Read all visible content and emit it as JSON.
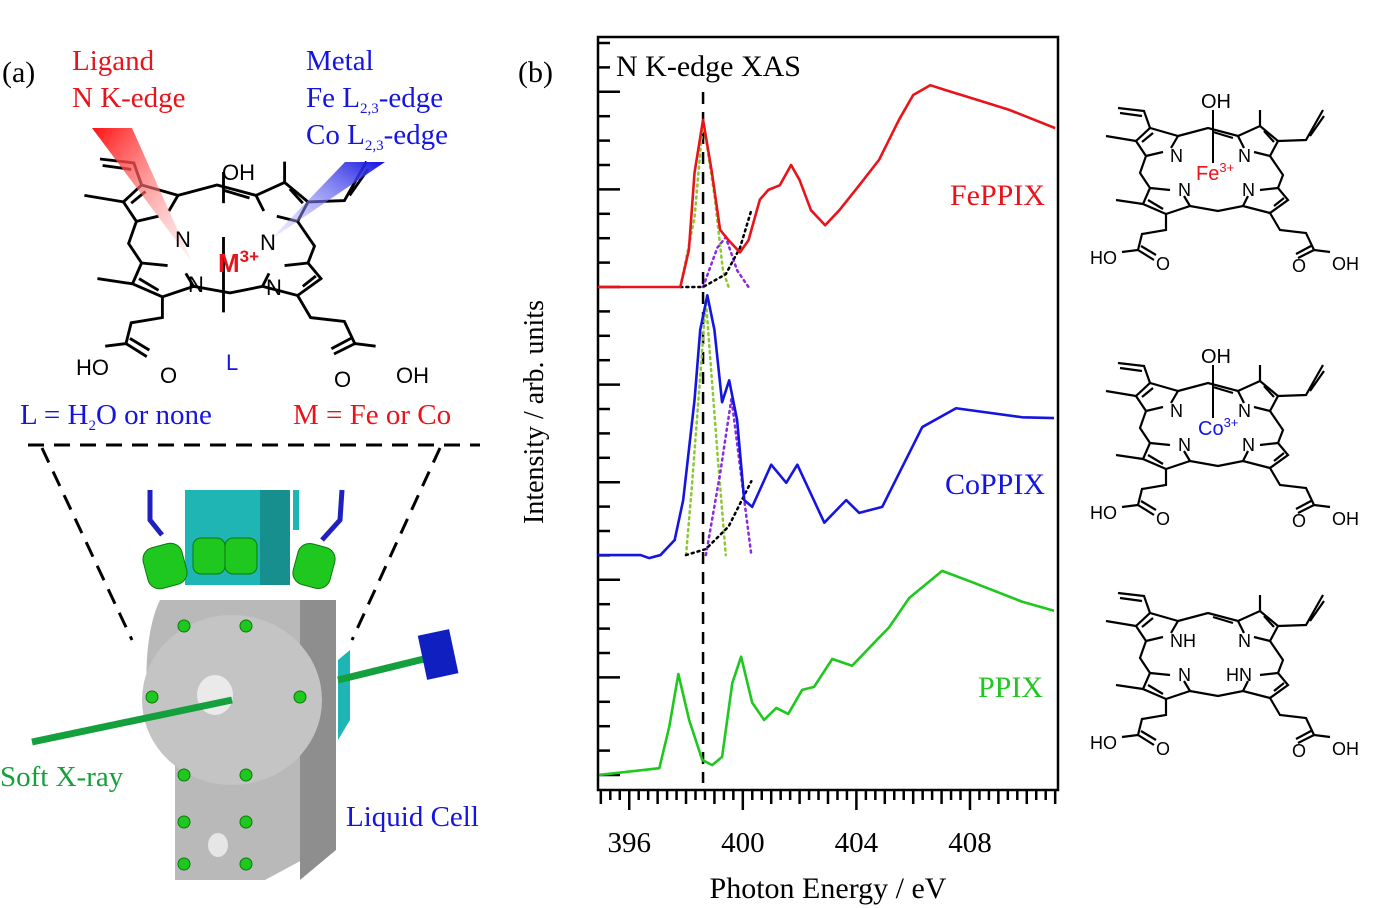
{
  "panel_a": {
    "label": "(a)",
    "ligand_probe": {
      "line1": "Ligand",
      "line2": "N K-edge",
      "color": "#e8141b"
    },
    "metal_probe": {
      "line1": "Metal",
      "line2_base": "Fe L",
      "line2_sub": "2,3",
      "line2_tail": "-edge",
      "line3_base": "Co L",
      "line3_sub": "2,3",
      "line3_tail": "-edge",
      "color": "#1515e0"
    },
    "molecule": {
      "axial_top": "OH",
      "metal": "M",
      "charge": "3+",
      "axial_bottom": "L",
      "n": "N",
      "acid_left_oh": "HO",
      "acid_o": "O",
      "acid_right_oh": "OH"
    },
    "legend_left": {
      "base": "L = H",
      "sub": "2",
      "tail": "O or none"
    },
    "legend_right": "M = Fe or Co",
    "xray_label": "Soft X-ray",
    "cell_label": "Liquid Cell"
  },
  "panel_b": {
    "label": "(b)"
  },
  "structures": [
    {
      "name": "FePPIX",
      "axial": "OH",
      "metal": "Fe",
      "charge": "3+",
      "metal_color": "#e8141b",
      "n": "N",
      "ho": "HO",
      "o": "O",
      "oh": "OH"
    },
    {
      "name": "CoPPIX",
      "axial": "OH",
      "metal": "Co",
      "charge": "3+",
      "metal_color": "#1515e0",
      "n": "N",
      "ho": "HO",
      "o": "O",
      "oh": "OH"
    },
    {
      "name": "PPIX",
      "nh": "NH",
      "hn": "HN",
      "n": "N",
      "ho": "HO",
      "o": "O",
      "oh": "OH"
    }
  ],
  "chart_data": {
    "type": "line",
    "title": "N K-edge XAS",
    "xlabel": "Photon Energy / eV",
    "ylabel": "Intensity / arb. units",
    "xlim": [
      394.9,
      411.1
    ],
    "ylim": [
      0,
      10
    ],
    "xticks": [
      396,
      400,
      404,
      408
    ],
    "xtick_labels": [
      "396",
      "400",
      "404",
      "408"
    ],
    "grid": false,
    "reference_line_energy": 398.6,
    "series": [
      {
        "name": "FePPIX",
        "color": "#e8141b",
        "points": [
          [
            394.9,
            6.68
          ],
          [
            396.7,
            6.68
          ],
          [
            397.8,
            6.68
          ],
          [
            398.1,
            7.17
          ],
          [
            398.3,
            8.2
          ],
          [
            398.6,
            8.9
          ],
          [
            398.9,
            8.23
          ],
          [
            399.2,
            7.44
          ],
          [
            399.5,
            7.3
          ],
          [
            399.9,
            7.14
          ],
          [
            400.2,
            7.3
          ],
          [
            400.6,
            7.84
          ],
          [
            400.9,
            7.97
          ],
          [
            401.3,
            8.03
          ],
          [
            401.7,
            8.3
          ],
          [
            402.0,
            8.1
          ],
          [
            402.4,
            7.7
          ],
          [
            402.9,
            7.5
          ],
          [
            403.4,
            7.7
          ],
          [
            404.1,
            8.03
          ],
          [
            404.8,
            8.37
          ],
          [
            405.5,
            8.9
          ],
          [
            406.0,
            9.23
          ],
          [
            406.6,
            9.36
          ],
          [
            407.1,
            9.3
          ],
          [
            408.3,
            9.16
          ],
          [
            409.4,
            9.03
          ],
          [
            411.0,
            8.79
          ]
        ]
      },
      {
        "name": "CoPPIX",
        "color": "#1515e0",
        "points": [
          [
            394.9,
            3.12
          ],
          [
            396.4,
            3.12
          ],
          [
            396.7,
            3.08
          ],
          [
            397.1,
            3.12
          ],
          [
            397.6,
            3.32
          ],
          [
            397.9,
            3.85
          ],
          [
            398.3,
            5.18
          ],
          [
            398.5,
            6.11
          ],
          [
            398.75,
            6.57
          ],
          [
            399.0,
            6.11
          ],
          [
            399.27,
            5.15
          ],
          [
            399.52,
            5.44
          ],
          [
            399.8,
            4.91
          ],
          [
            400.05,
            3.85
          ],
          [
            400.33,
            3.76
          ],
          [
            401.0,
            4.32
          ],
          [
            401.53,
            4.08
          ],
          [
            401.92,
            4.32
          ],
          [
            402.87,
            3.55
          ],
          [
            403.64,
            3.85
          ],
          [
            404.1,
            3.68
          ],
          [
            404.91,
            3.76
          ],
          [
            406.32,
            4.82
          ],
          [
            407.51,
            5.07
          ],
          [
            409.84,
            4.95
          ],
          [
            410.96,
            4.94
          ]
        ]
      },
      {
        "name": "PPIX",
        "color": "#1ec81e",
        "points": [
          [
            394.94,
            0.2
          ],
          [
            397.06,
            0.29
          ],
          [
            397.41,
            0.84
          ],
          [
            397.73,
            1.54
          ],
          [
            398.11,
            0.93
          ],
          [
            398.57,
            0.4
          ],
          [
            398.92,
            0.33
          ],
          [
            399.27,
            0.44
          ],
          [
            399.63,
            1.42
          ],
          [
            399.94,
            1.77
          ],
          [
            400.33,
            1.16
          ],
          [
            400.75,
            0.93
          ],
          [
            401.18,
            1.09
          ],
          [
            401.6,
            1.01
          ],
          [
            402.09,
            1.33
          ],
          [
            402.51,
            1.37
          ],
          [
            403.15,
            1.74
          ],
          [
            403.85,
            1.65
          ],
          [
            404.56,
            1.93
          ],
          [
            405.15,
            2.16
          ],
          [
            405.86,
            2.55
          ],
          [
            407.02,
            2.91
          ],
          [
            408.08,
            2.76
          ],
          [
            409.84,
            2.5
          ],
          [
            410.96,
            2.38
          ]
        ]
      }
    ],
    "fit_components": [
      {
        "spectrum": "FePPIX",
        "color": "#8cc832",
        "points": [
          [
            397.8,
            6.68
          ],
          [
            398.3,
            7.6
          ],
          [
            398.6,
            8.9
          ],
          [
            399.0,
            7.9
          ],
          [
            399.3,
            6.9
          ],
          [
            399.5,
            6.68
          ]
        ]
      },
      {
        "spectrum": "FePPIX",
        "color": "#8a2be2",
        "points": [
          [
            398.6,
            6.68
          ],
          [
            399.1,
            7.2
          ],
          [
            399.4,
            7.34
          ],
          [
            399.8,
            6.9
          ],
          [
            400.2,
            6.68
          ]
        ]
      },
      {
        "spectrum": "FePPIX",
        "color": "#000000",
        "points": [
          [
            397.8,
            6.68
          ],
          [
            398.6,
            6.68
          ],
          [
            399.4,
            6.85
          ],
          [
            399.9,
            7.2
          ],
          [
            400.3,
            7.7
          ]
        ]
      },
      {
        "spectrum": "CoPPIX",
        "color": "#8cc832",
        "points": [
          [
            398.0,
            3.12
          ],
          [
            398.2,
            4.0
          ],
          [
            398.7,
            6.5
          ],
          [
            399.1,
            4.5
          ],
          [
            399.4,
            3.12
          ]
        ]
      },
      {
        "spectrum": "CoPPIX",
        "color": "#8a2be2",
        "points": [
          [
            398.7,
            3.12
          ],
          [
            399.2,
            4.2
          ],
          [
            399.6,
            5.2
          ],
          [
            400.0,
            4.0
          ],
          [
            400.3,
            3.12
          ]
        ]
      },
      {
        "spectrum": "CoPPIX",
        "color": "#000000",
        "points": [
          [
            398.0,
            3.12
          ],
          [
            398.7,
            3.2
          ],
          [
            399.5,
            3.5
          ],
          [
            400.3,
            4.1
          ]
        ]
      }
    ]
  }
}
